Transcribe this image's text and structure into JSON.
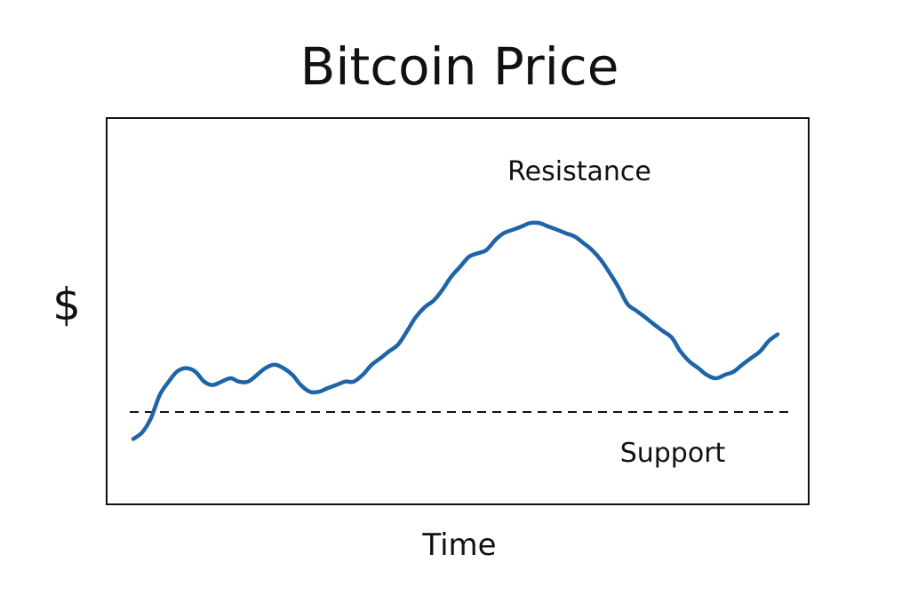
{
  "chart_data": {
    "type": "line",
    "title": "Bitcoin Price",
    "xlabel": "Time",
    "ylabel": "$",
    "xlim": [
      0,
      100
    ],
    "ylim": [
      0,
      100
    ],
    "grid": false,
    "line_color": "#1f64a6",
    "support_color": "#111111",
    "series": [
      {
        "values_x": [
          0,
          1.4,
          2.7,
          4.1,
          5.5,
          6.8,
          8.2,
          9.6,
          11.0,
          12.3,
          13.7,
          15.1,
          16.4,
          17.8,
          19.2,
          20.5,
          21.9,
          23.3,
          24.7,
          26.0,
          27.4,
          28.8,
          30.1,
          31.5,
          32.9,
          34.2,
          35.6,
          37.0,
          38.4,
          39.7,
          41.1,
          42.5,
          43.8,
          45.2,
          46.6,
          47.9,
          49.3,
          50.7,
          52.1,
          53.4,
          54.8,
          56.2,
          57.5,
          58.9,
          60.3,
          61.6,
          63.0,
          64.4,
          65.8,
          67.1,
          68.5,
          69.9,
          71.2,
          72.6,
          74.0,
          75.3,
          76.7,
          78.1,
          79.5,
          80.8,
          82.2,
          83.6,
          84.9,
          86.3,
          87.7,
          89.0,
          90.4,
          91.8,
          93.2,
          94.5,
          95.9,
          97.3,
          98.6,
          100
        ],
        "values_y": [
          12,
          14,
          18,
          25,
          29,
          32,
          33,
          32,
          29,
          28,
          29,
          30,
          29,
          29,
          31,
          33,
          34,
          33,
          31,
          28,
          26,
          26,
          27,
          28,
          29,
          29,
          31,
          34,
          36,
          38,
          40,
          44,
          48,
          51,
          53,
          56,
          60,
          63,
          66,
          67,
          68,
          71,
          73,
          74,
          75,
          76,
          76,
          75,
          74,
          73,
          72,
          70,
          68,
          65,
          61,
          57,
          52,
          50,
          48,
          46,
          44,
          42,
          38,
          35,
          33,
          31,
          30,
          31,
          32,
          34,
          36,
          38,
          41,
          43
        ]
      }
    ],
    "annotations": {
      "resistance": "Resistance",
      "support": "Support"
    },
    "support_level": 20
  }
}
